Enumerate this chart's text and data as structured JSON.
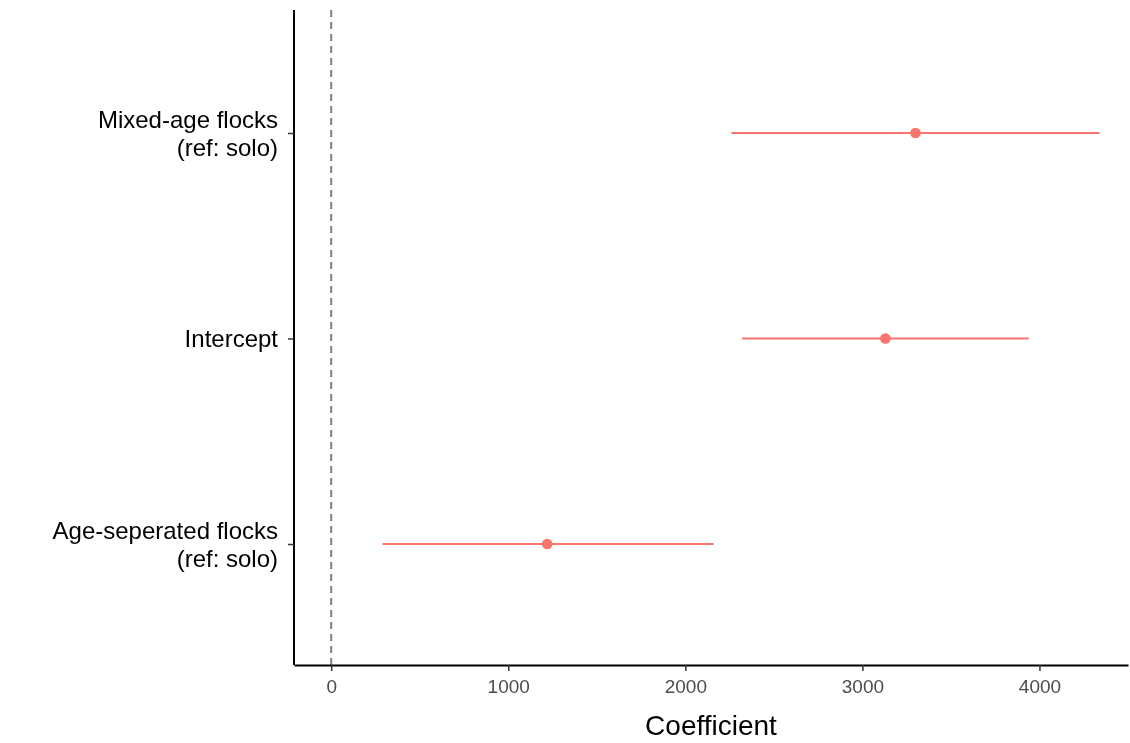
{
  "chart_data": {
    "type": "scatter",
    "orientation": "horizontal",
    "xlabel": "Coefficient",
    "categories": [
      "Mixed-age flocks\n(ref: solo)",
      "Intercept",
      "Age-seperated flocks\n(ref: solo)"
    ],
    "values": [
      3300,
      3130,
      1220
    ],
    "errors": [
      [
        2260,
        4340
      ],
      [
        2320,
        3940
      ],
      [
        290,
        2160
      ]
    ],
    "color": "#f8766d",
    "marker": "circle",
    "xlim": [
      -210,
      4500
    ],
    "xticks": [
      0,
      1000,
      2000,
      3000,
      4000
    ],
    "ref_lines": [
      {
        "axis": "x",
        "value": 0,
        "color": "#808080",
        "line_style": "dashed"
      }
    ],
    "grid": false
  }
}
